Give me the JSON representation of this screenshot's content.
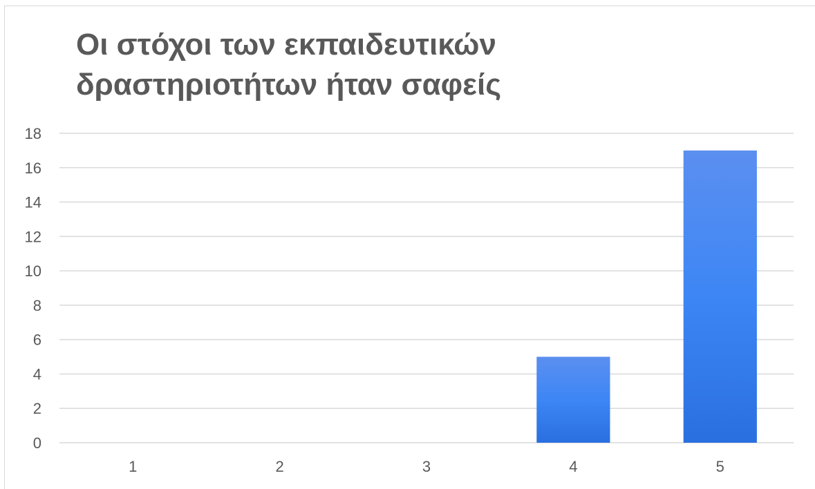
{
  "chart_data": {
    "type": "bar",
    "title_lines": [
      "Οι στόχοι των εκπαιδευτικών",
      "δραστηριοτήτων ήταν σαφείς"
    ],
    "categories": [
      "1",
      "2",
      "3",
      "4",
      "5"
    ],
    "values": [
      0,
      0,
      0,
      5,
      17
    ],
    "xlabel": "",
    "ylabel": "",
    "ylim": [
      0,
      18
    ],
    "yticks": [
      "0",
      "2",
      "4",
      "6",
      "8",
      "10",
      "12",
      "14",
      "16",
      "18"
    ],
    "grid": true,
    "legend": "none",
    "bar_color_top": "#5b8ff0",
    "bar_color_mid": "#3d86f5",
    "bar_color_bottom": "#2a6fe0",
    "grid_color": "#d9d9d9",
    "text_color": "#595959"
  }
}
